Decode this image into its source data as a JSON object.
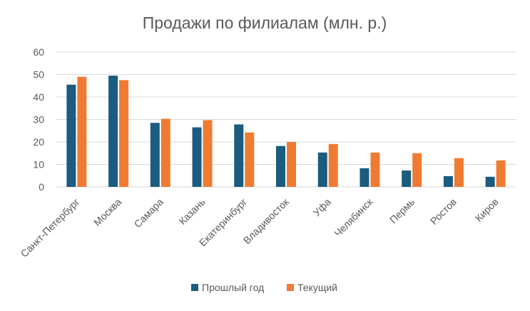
{
  "chart_data": {
    "type": "bar",
    "title": "Продажи по филиалам (млн. р.)",
    "xlabel": "",
    "ylabel": "",
    "categories": [
      "Санкт-Петербург",
      "Москва",
      "Самара",
      "Казань",
      "Екатеринбург",
      "Владивосток",
      "Уфа",
      "Челябинск",
      "Пермь",
      "Ростов",
      "Киров"
    ],
    "series": [
      {
        "name": "Прошлый год",
        "color": "#1b5c7f",
        "values": [
          45.5,
          49.5,
          28.5,
          26.5,
          27.8,
          18.2,
          15.3,
          8.3,
          7.3,
          4.8,
          4.5
        ]
      },
      {
        "name": "Текущий",
        "color": "#ef7b32",
        "values": [
          49,
          47.5,
          30.3,
          29.7,
          24.2,
          20,
          19.1,
          15.3,
          15,
          12.8,
          11.8
        ]
      }
    ],
    "ylim": [
      0,
      60
    ],
    "yticks": [
      0,
      10,
      20,
      30,
      40,
      50,
      60
    ],
    "grid": true,
    "legend_position": "bottom"
  }
}
